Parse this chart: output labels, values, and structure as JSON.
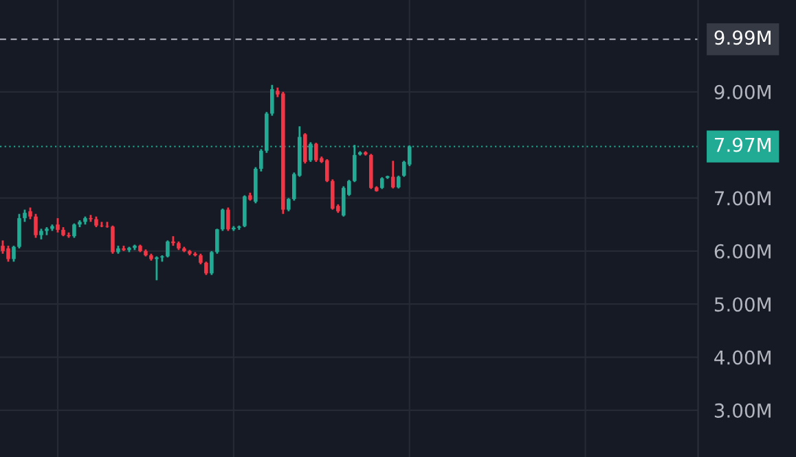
{
  "chart_data": {
    "type": "candlestick",
    "categories": [
      null,
      null,
      null,
      null,
      null,
      null,
      null,
      null,
      null,
      null,
      null,
      null,
      null,
      null,
      null,
      null,
      null,
      null,
      null,
      null,
      null,
      null,
      null,
      null,
      null,
      null,
      null,
      null,
      null,
      null,
      null,
      null,
      null,
      null,
      null,
      null,
      null,
      null,
      null,
      null,
      null,
      null,
      null,
      null,
      null,
      null,
      null,
      null,
      null,
      null,
      null,
      null,
      null,
      null,
      null,
      null,
      null,
      null,
      null,
      null,
      null,
      null,
      null,
      null,
      null,
      null,
      null,
      null,
      null,
      null,
      null,
      null,
      null,
      null,
      null,
      null,
      null,
      null,
      null,
      null,
      null,
      null,
      null,
      null,
      null,
      null,
      null,
      null,
      null,
      null,
      null,
      null,
      null,
      null,
      null,
      null,
      null,
      null,
      null,
      null,
      null,
      null,
      null,
      null,
      null,
      null,
      null,
      null,
      null,
      null,
      null,
      null,
      null,
      null,
      null,
      null,
      null,
      null,
      null,
      null,
      null,
      null,
      null,
      null,
      null,
      null,
      null
    ],
    "ohlc": [
      [
        6.1,
        6.2,
        5.95,
        6.0
      ],
      [
        6.05,
        6.1,
        5.8,
        5.85
      ],
      [
        5.85,
        6.1,
        5.8,
        6.08
      ],
      [
        6.08,
        6.7,
        6.05,
        6.62
      ],
      [
        6.62,
        6.78,
        6.55,
        6.72
      ],
      [
        6.75,
        6.82,
        6.6,
        6.65
      ],
      [
        6.65,
        6.7,
        6.25,
        6.3
      ],
      [
        6.3,
        6.42,
        6.22,
        6.38
      ],
      [
        6.38,
        6.45,
        6.3,
        6.42
      ],
      [
        6.42,
        6.5,
        6.38,
        6.47
      ],
      [
        6.5,
        6.62,
        6.35,
        6.4
      ],
      [
        6.4,
        6.45,
        6.28,
        6.3
      ],
      [
        6.3,
        6.35,
        6.25,
        6.28
      ],
      [
        6.28,
        6.52,
        6.25,
        6.5
      ],
      [
        6.5,
        6.58,
        6.45,
        6.55
      ],
      [
        6.55,
        6.65,
        6.5,
        6.62
      ],
      [
        6.62,
        6.68,
        6.55,
        6.6
      ],
      [
        6.6,
        6.65,
        6.45,
        6.48
      ],
      [
        6.48,
        6.55,
        6.45,
        6.47
      ],
      [
        6.47,
        6.55,
        6.44,
        6.46
      ],
      [
        6.46,
        6.48,
        5.95,
        5.98
      ],
      [
        5.98,
        6.1,
        5.95,
        6.05
      ],
      [
        6.05,
        6.1,
        6.0,
        6.02
      ],
      [
        6.02,
        6.08,
        5.98,
        6.06
      ],
      [
        6.06,
        6.12,
        6.02,
        6.1
      ],
      [
        6.1,
        6.12,
        5.98,
        6.0
      ],
      [
        6.0,
        6.03,
        5.9,
        5.92
      ],
      [
        5.92,
        5.95,
        5.82,
        5.85
      ],
      [
        5.85,
        5.9,
        5.45,
        5.88
      ],
      [
        5.88,
        5.92,
        5.8,
        5.9
      ],
      [
        5.9,
        6.2,
        5.88,
        6.18
      ],
      [
        6.18,
        6.28,
        6.1,
        6.15
      ],
      [
        6.15,
        6.18,
        6.02,
        6.05
      ],
      [
        6.05,
        6.08,
        5.98,
        6.0
      ],
      [
        6.0,
        6.02,
        5.92,
        5.95
      ],
      [
        5.95,
        5.98,
        5.9,
        5.92
      ],
      [
        5.92,
        5.95,
        5.75,
        5.78
      ],
      [
        5.78,
        5.8,
        5.55,
        5.58
      ],
      [
        5.58,
        6.0,
        5.55,
        5.98
      ],
      [
        5.98,
        6.42,
        5.95,
        6.41
      ],
      [
        6.41,
        6.8,
        6.38,
        6.78
      ],
      [
        6.78,
        6.82,
        6.38,
        6.41
      ],
      [
        6.41,
        6.47,
        6.38,
        6.44
      ],
      [
        6.44,
        6.48,
        6.4,
        6.46
      ],
      [
        6.47,
        7.05,
        6.45,
        7.03
      ],
      [
        7.05,
        7.1,
        6.95,
        6.97
      ],
      [
        6.93,
        7.58,
        6.9,
        7.55
      ],
      [
        7.55,
        7.92,
        7.5,
        7.89
      ],
      [
        7.89,
        8.62,
        7.85,
        8.59
      ],
      [
        8.59,
        9.13,
        8.55,
        9.05
      ],
      [
        9.02,
        9.08,
        8.9,
        8.95
      ],
      [
        8.97,
        9.0,
        6.7,
        6.78
      ],
      [
        6.78,
        7.0,
        6.75,
        6.98
      ],
      [
        6.98,
        7.48,
        6.95,
        7.45
      ],
      [
        7.42,
        8.35,
        7.4,
        8.15
      ],
      [
        8.2,
        8.22,
        7.65,
        7.68
      ],
      [
        7.71,
        8.05,
        7.68,
        8.02
      ],
      [
        8.02,
        8.04,
        7.68,
        7.71
      ],
      [
        7.75,
        7.78,
        7.66,
        7.68
      ],
      [
        7.71,
        7.73,
        7.3,
        7.32
      ],
      [
        7.32,
        7.35,
        6.78,
        6.8
      ],
      [
        6.85,
        6.88,
        6.72,
        6.75
      ],
      [
        6.67,
        7.22,
        6.65,
        7.19
      ],
      [
        7.06,
        7.34,
        7.04,
        7.32
      ],
      [
        7.32,
        8.0,
        7.3,
        7.81
      ],
      [
        7.82,
        7.88,
        7.8,
        7.86
      ],
      [
        7.86,
        7.88,
        7.8,
        7.82
      ],
      [
        7.81,
        7.83,
        7.17,
        7.19
      ],
      [
        7.2,
        7.22,
        7.12,
        7.13
      ],
      [
        7.19,
        7.39,
        7.17,
        7.37
      ],
      [
        7.38,
        7.42,
        7.36,
        7.41
      ],
      [
        7.4,
        7.7,
        7.18,
        7.2
      ],
      [
        7.2,
        7.42,
        7.18,
        7.4
      ],
      [
        7.42,
        7.7,
        7.4,
        7.68
      ],
      [
        7.63,
        7.99,
        7.6,
        7.97
      ],
      null,
      null,
      null,
      null,
      null,
      null,
      null,
      null,
      null,
      null,
      null,
      null,
      null,
      null,
      null,
      null,
      null,
      null,
      null,
      null,
      null,
      null,
      null,
      null,
      null,
      null,
      null,
      null,
      null,
      null,
      null,
      null,
      null,
      null,
      null,
      null,
      null,
      null,
      null,
      null,
      null,
      null,
      null,
      null,
      null,
      null,
      null,
      null,
      null,
      null,
      null,
      null
    ],
    "colors": [
      "#f23645",
      "#f23645",
      "#22ab94",
      "#22ab94",
      "#22ab94",
      "#f23645",
      "#f23645",
      "#22ab94",
      "#22ab94",
      "#22ab94",
      "#f23645",
      "#f23645",
      "#f23645",
      "#22ab94",
      "#22ab94",
      "#22ab94",
      "#f23645",
      "#f23645",
      "#f23645",
      "#f23645",
      "#f23645",
      "#22ab94",
      "#f23645",
      "#22ab94",
      "#22ab94",
      "#f23645",
      "#f23645",
      "#f23645",
      "#22ab94",
      "#22ab94",
      "#22ab94",
      "#f23645",
      "#f23645",
      "#f23645",
      "#f23645",
      "#f23645",
      "#f23645",
      "#f23645",
      "#22ab94",
      "#22ab94",
      "#22ab94",
      "#f23645",
      "#22ab94",
      "#22ab94",
      "#22ab94",
      "#f23645",
      "#22ab94",
      "#22ab94",
      "#22ab94",
      "#22ab94",
      "#f23645",
      "#f23645",
      "#22ab94",
      "#22ab94",
      "#22ab94",
      "#f23645",
      "#22ab94",
      "#f23645",
      "#f23645",
      "#f23645",
      "#f23645",
      "#f23645",
      "#22ab94",
      "#22ab94",
      "#22ab94",
      "#22ab94",
      "#f23645",
      "#f23645",
      "#f23645",
      "#22ab94",
      "#22ab94",
      "#f23645",
      "#22ab94",
      "#22ab94",
      "#22ab94",
      null,
      null,
      null,
      null,
      null,
      null,
      null,
      null,
      null,
      null,
      null,
      null,
      null,
      null,
      null,
      null,
      null,
      null,
      null,
      null,
      null,
      null,
      null,
      null,
      null,
      null,
      null,
      null,
      null,
      null,
      null,
      null,
      null,
      null,
      null,
      null,
      null,
      null,
      null,
      null,
      null,
      null,
      null,
      null,
      null,
      null,
      null,
      null,
      null,
      null,
      null,
      null
    ],
    "ylim": [
      2.12,
      10.73
    ],
    "yticks": [
      {
        "value": 3,
        "label": "3.00M"
      },
      {
        "value": 4,
        "label": "4.00M"
      },
      {
        "value": 5,
        "label": "5.00M"
      },
      {
        "value": 6,
        "label": "6.00M"
      },
      {
        "value": 7,
        "label": "7.00M"
      },
      {
        "value": 9,
        "label": "9.00M"
      }
    ],
    "ref_lines": [
      {
        "axis": "y",
        "value": 9.99,
        "label": "9.99M",
        "color": "#b2b5be",
        "line_style": "dashed"
      },
      {
        "axis": "y",
        "value": 7.97,
        "label": "7.97M",
        "color": "#22ab94",
        "line_style": "dotted"
      }
    ],
    "grid": true,
    "tick_labels": "y"
  }
}
